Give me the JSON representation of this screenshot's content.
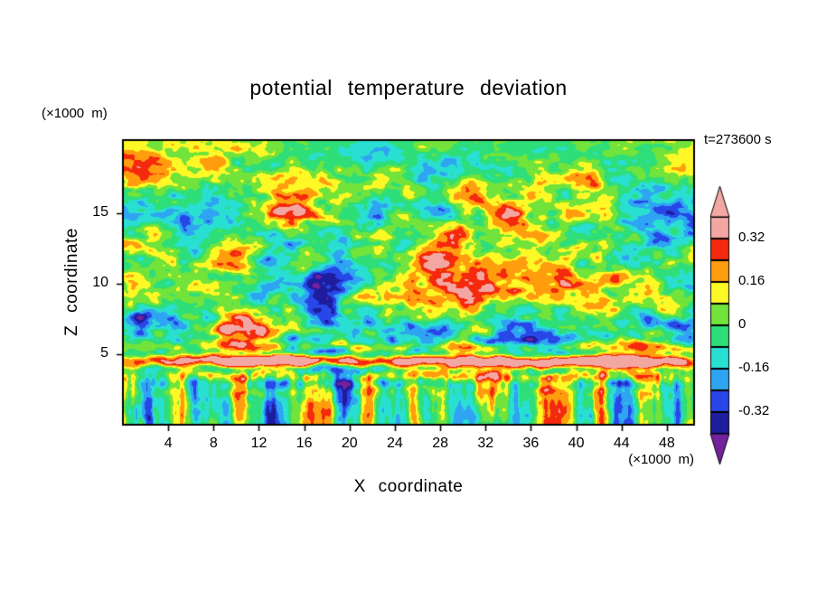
{
  "page": {
    "background": "#ffffff",
    "text_color": "#000000"
  },
  "chart_data": {
    "type": "filled-contour",
    "title": "potential temperature deviation",
    "time_label": "t=273600 s",
    "x_axis": {
      "label": "X coordinate",
      "units_label": "(×1000 m)",
      "range": [
        0,
        50.4
      ],
      "ticks": [
        4,
        8,
        12,
        16,
        20,
        24,
        28,
        32,
        36,
        40,
        44,
        48
      ]
    },
    "z_axis": {
      "label": "Z coordinate",
      "units_label": "(×1000 m)",
      "range": [
        0,
        20.2
      ],
      "ticks": [
        5,
        10,
        15
      ]
    },
    "colorbar": {
      "labels": [
        "0.32",
        "0.16",
        "0",
        "-0.16",
        "-0.32"
      ],
      "label_values": [
        0.32,
        0.16,
        0,
        -0.16,
        -0.32
      ],
      "min": -0.4,
      "max": 0.4,
      "interval": 0.08,
      "levels": [
        -0.4,
        -0.32,
        -0.24,
        -0.16,
        -0.08,
        0,
        0.08,
        0.16,
        0.24,
        0.32,
        0.4
      ],
      "band_colors_low_to_high": [
        "#1d1d9e",
        "#2847e8",
        "#2fa4f2",
        "#29dfd1",
        "#2ede79",
        "#71e33b",
        "#fdf826",
        "#ff9d0f",
        "#f5290d",
        "#f3a7a3"
      ],
      "under_color": "#74219e",
      "over_color": "#f3a7a3"
    },
    "field_summary": "Turbulent potential-temperature deviation cross-section: a warm (pink) laminated inversion layer near z=4-5 km fringed by thin red/orange/yellow lines, vigorous warm (pink/red/orange) and cold (navy/purple) eddies between z=6 and 16 km over a green near-zero background, weaker mottling near the model top, and vertical convective plume streaks below z=4 km.",
    "generator": {
      "seed": 7,
      "layer_z": 4.5
    }
  }
}
